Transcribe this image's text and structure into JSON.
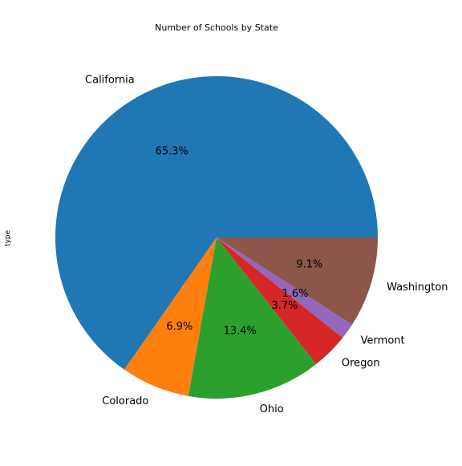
{
  "chart_data": {
    "type": "pie",
    "title": "Number of Schools by State",
    "xlabel": "",
    "ylabel": "type",
    "categories": [
      "California",
      "Colorado",
      "Ohio",
      "Oregon",
      "Vermont",
      "Washington"
    ],
    "values": [
      65.3,
      6.9,
      13.4,
      3.7,
      1.6,
      9.1
    ],
    "value_labels": [
      "65.3%",
      "6.9%",
      "13.4%",
      "3.7%",
      "1.6%",
      "9.1%"
    ],
    "colors": [
      "#1f77b4",
      "#ff7f0e",
      "#2ca02c",
      "#d62728",
      "#9467bd",
      "#8c564b"
    ],
    "start_angle_deg": 0,
    "direction": "counterclockwise",
    "legend": "none"
  }
}
